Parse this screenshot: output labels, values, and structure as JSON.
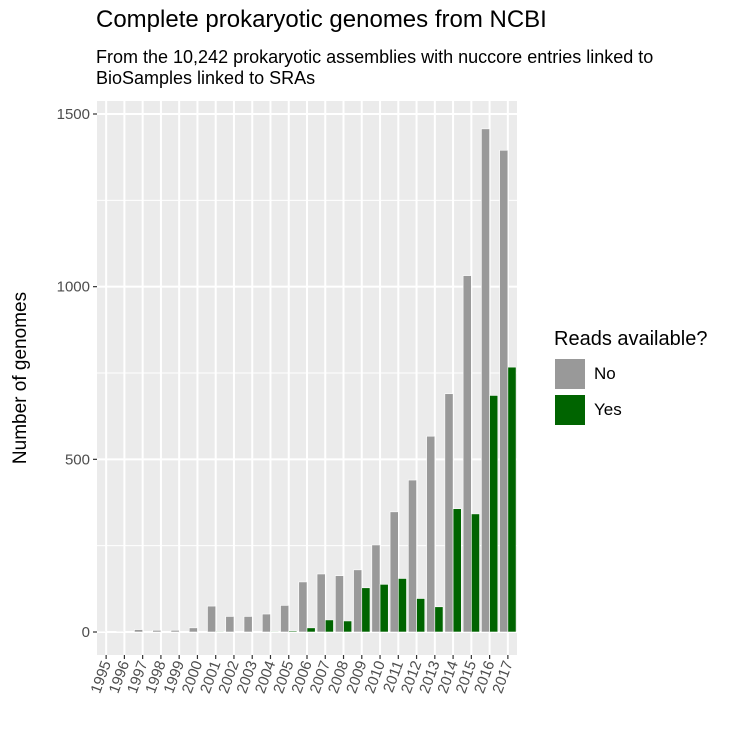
{
  "chart_data": {
    "type": "bar",
    "title": "Complete prokaryotic genomes from NCBI",
    "subtitle": "From the 10,242 prokaryotic assemblies with nuccore entries linked to BioSamples linked to SRAs",
    "xlabel": "",
    "ylabel": "Number of genomes",
    "categories": [
      "1995",
      "1996",
      "1997",
      "1998",
      "1999",
      "2000",
      "2001",
      "2002",
      "2003",
      "2004",
      "2005",
      "2006",
      "2007",
      "2008",
      "2009",
      "2010",
      "2011",
      "2012",
      "2013",
      "2014",
      "2015",
      "2016",
      "2017"
    ],
    "series": [
      {
        "name": "No",
        "color": "#999999",
        "values": [
          2,
          2,
          7,
          5,
          5,
          12,
          75,
          45,
          45,
          52,
          77,
          145,
          168,
          163,
          180,
          252,
          348,
          440,
          567,
          690,
          1032,
          1457,
          1395
        ]
      },
      {
        "name": "Yes",
        "color": "#006400",
        "values": [
          0,
          0,
          0,
          0,
          0,
          0,
          2,
          0,
          0,
          2,
          3,
          12,
          35,
          32,
          128,
          138,
          155,
          97,
          73,
          357,
          342,
          685,
          767
        ]
      }
    ],
    "ylim": [
      0,
      1500
    ],
    "yticks": [
      0,
      500,
      1000,
      1500
    ],
    "grid": true,
    "legend": {
      "title": "Reads available?",
      "position": "right",
      "entries": [
        "No",
        "Yes"
      ]
    }
  }
}
